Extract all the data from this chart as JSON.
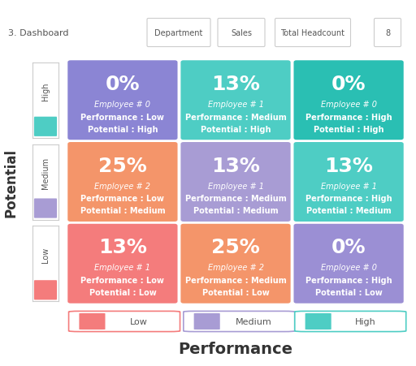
{
  "title_bar": "3. Dashboard",
  "dept_label": "Department",
  "dept_value": "Sales",
  "headcount_label": "Total Headcount",
  "headcount_value": "8",
  "title_bar_bg": "#3d4a5c",
  "main_bg": "#ffffff",
  "header_bg": "#f2f2f2",
  "x_axis_label": "Performance",
  "y_axis_label": "Potential",
  "cells": [
    {
      "row": 2,
      "col": 0,
      "pct": "0%",
      "emp": "Employee # 0",
      "perf": "Performance : Low",
      "pot": "Potential : High",
      "bg": "#8b85d4"
    },
    {
      "row": 2,
      "col": 1,
      "pct": "13%",
      "emp": "Employee # 1",
      "perf": "Performance : Medium",
      "pot": "Potential : High",
      "bg": "#4ecdc4"
    },
    {
      "row": 2,
      "col": 2,
      "pct": "0%",
      "emp": "Employee # 0",
      "perf": "Performance : High",
      "pot": "Potential : High",
      "bg": "#2abfb3"
    },
    {
      "row": 1,
      "col": 0,
      "pct": "25%",
      "emp": "Employee # 2",
      "perf": "Performance : Low",
      "pot": "Potential : Medium",
      "bg": "#f4956a"
    },
    {
      "row": 1,
      "col": 1,
      "pct": "13%",
      "emp": "Employee # 1",
      "perf": "Performance : Medium",
      "pot": "Potential : Medium",
      "bg": "#a89cd4"
    },
    {
      "row": 1,
      "col": 2,
      "pct": "13%",
      "emp": "Employee # 1",
      "perf": "Performance : High",
      "pot": "Potential : Medium",
      "bg": "#4ecdc4"
    },
    {
      "row": 0,
      "col": 0,
      "pct": "13%",
      "emp": "Employee # 1",
      "perf": "Performance : Low",
      "pot": "Potential : Low",
      "bg": "#f47c7c"
    },
    {
      "row": 0,
      "col": 1,
      "pct": "25%",
      "emp": "Employee # 2",
      "perf": "Performance : Medium",
      "pot": "Potential : Low",
      "bg": "#f4956a"
    },
    {
      "row": 0,
      "col": 2,
      "pct": "0%",
      "emp": "Employee # 0",
      "perf": "Performance : High",
      "pot": "Potential : Low",
      "bg": "#9b8fd4"
    }
  ],
  "sidebar_colors": [
    "#f47c7c",
    "#a89cd4",
    "#4ecdc4"
  ],
  "sidebar_labels": [
    "Low",
    "Medium",
    "High"
  ],
  "legend": [
    {
      "label": "Low",
      "color": "#f47c7c"
    },
    {
      "label": "Medium",
      "color": "#a89cd4"
    },
    {
      "label": "High",
      "color": "#4ecdc4"
    }
  ],
  "pct_fontsize": 18,
  "info_fontsize": 7,
  "ylabel_fontsize": 12,
  "xlabel_fontsize": 14,
  "legend_fontsize": 8
}
